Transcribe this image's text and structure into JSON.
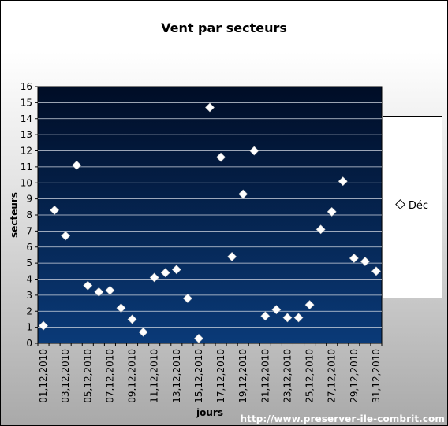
{
  "chart_data": {
    "type": "scatter",
    "title": "Vent par secteurs",
    "xlabel": "jours",
    "ylabel": "secteurs",
    "ylim": [
      0,
      16
    ],
    "y_ticks": [
      "0",
      "1",
      "2",
      "3",
      "4",
      "5",
      "6",
      "7",
      "8",
      "9",
      "10",
      "11",
      "12",
      "13",
      "14",
      "15",
      "16"
    ],
    "x_tick_labels": [
      "01,12,2010",
      "03,12,2010",
      "05,12,2010",
      "07,12,2010",
      "09,12,2010",
      "11,12,2010",
      "13,12,2010",
      "15,12,2010",
      "17,12,2010",
      "19,12,2010",
      "21,12,2010",
      "23,12,2010",
      "25,12,2010",
      "27,12,2010",
      "29,12,2010",
      "31,12,2010"
    ],
    "grid": true,
    "legend_position": "right",
    "series": [
      {
        "name": "Déc",
        "marker": "diamond",
        "x": [
          1,
          2,
          3,
          4,
          5,
          6,
          7,
          8,
          9,
          10,
          11,
          12,
          13,
          14,
          15,
          16,
          17,
          18,
          19,
          20,
          21,
          22,
          23,
          24,
          25,
          26,
          27,
          28,
          29,
          30,
          31
        ],
        "values": [
          1.1,
          8.3,
          6.7,
          11.1,
          3.6,
          3.2,
          3.3,
          2.2,
          1.5,
          0.7,
          4.1,
          4.4,
          4.6,
          2.8,
          0.3,
          14.7,
          11.6,
          5.4,
          9.3,
          12.0,
          1.7,
          2.1,
          1.6,
          1.6,
          2.4,
          7.1,
          8.2,
          10.1,
          5.3,
          5.1,
          4.5
        ]
      }
    ]
  },
  "footer": {
    "source_url": "http://www.preserver-ile-combrit.com"
  }
}
